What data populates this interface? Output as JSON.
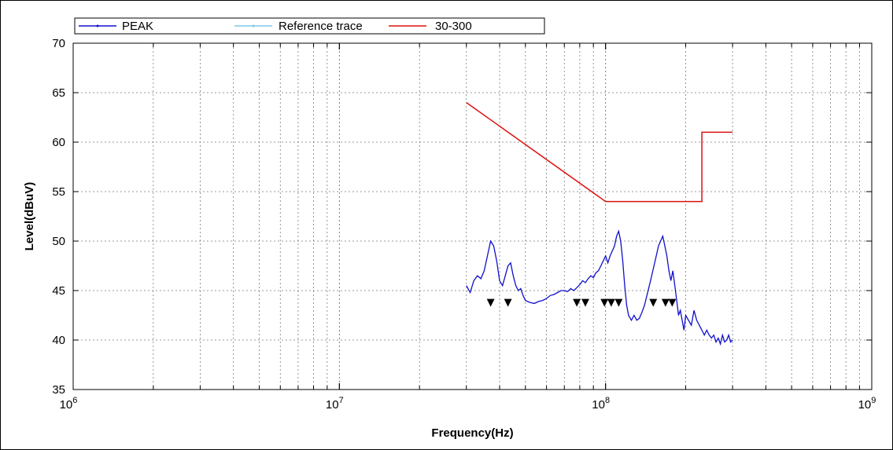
{
  "chart_data": {
    "type": "line",
    "xlabel": "Frequency(Hz)",
    "ylabel": "Level(dBuV)",
    "xscale": "log",
    "xlim": [
      1000000,
      1000000000
    ],
    "ylim": [
      35,
      70
    ],
    "x_ticks": [
      {
        "value": 1000000,
        "base": "10",
        "exp": "6"
      },
      {
        "value": 10000000,
        "base": "10",
        "exp": "7"
      },
      {
        "value": 100000000,
        "base": "10",
        "exp": "8"
      },
      {
        "value": 1000000000,
        "base": "10",
        "exp": "9"
      }
    ],
    "y_ticks": [
      "35",
      "40",
      "45",
      "50",
      "55",
      "60",
      "65",
      "70"
    ],
    "grid": true,
    "legend_position": "top-left",
    "series": [
      {
        "name": "PEAK",
        "color": "#1010cc",
        "points": [
          [
            30000000,
            45.5
          ],
          [
            31000000,
            44.8
          ],
          [
            32000000,
            46.0
          ],
          [
            33000000,
            46.5
          ],
          [
            34000000,
            46.2
          ],
          [
            35000000,
            47.0
          ],
          [
            36000000,
            48.5
          ],
          [
            37000000,
            50.0
          ],
          [
            38000000,
            49.5
          ],
          [
            39000000,
            48.0
          ],
          [
            40000000,
            46.0
          ],
          [
            41000000,
            45.5
          ],
          [
            42000000,
            46.5
          ],
          [
            43000000,
            47.5
          ],
          [
            44000000,
            47.8
          ],
          [
            45000000,
            46.5
          ],
          [
            46000000,
            45.5
          ],
          [
            47000000,
            45.0
          ],
          [
            48000000,
            45.2
          ],
          [
            49000000,
            44.5
          ],
          [
            50000000,
            44.0
          ],
          [
            52000000,
            43.8
          ],
          [
            54000000,
            43.7
          ],
          [
            56000000,
            43.9
          ],
          [
            58000000,
            44.0
          ],
          [
            60000000,
            44.2
          ],
          [
            62000000,
            44.5
          ],
          [
            64000000,
            44.6
          ],
          [
            66000000,
            44.8
          ],
          [
            68000000,
            45.0
          ],
          [
            70000000,
            45.0
          ],
          [
            72000000,
            44.9
          ],
          [
            74000000,
            45.2
          ],
          [
            76000000,
            45.0
          ],
          [
            78000000,
            45.3
          ],
          [
            80000000,
            45.6
          ],
          [
            82000000,
            46.0
          ],
          [
            84000000,
            45.8
          ],
          [
            86000000,
            46.2
          ],
          [
            88000000,
            46.5
          ],
          [
            90000000,
            46.3
          ],
          [
            92000000,
            46.8
          ],
          [
            94000000,
            47.0
          ],
          [
            96000000,
            47.5
          ],
          [
            98000000,
            48.0
          ],
          [
            100000000,
            48.5
          ],
          [
            102000000,
            47.8
          ],
          [
            104000000,
            48.5
          ],
          [
            106000000,
            49.0
          ],
          [
            108000000,
            49.5
          ],
          [
            110000000,
            50.5
          ],
          [
            112000000,
            51.0
          ],
          [
            114000000,
            50.0
          ],
          [
            116000000,
            48.0
          ],
          [
            118000000,
            45.5
          ],
          [
            120000000,
            43.5
          ],
          [
            122000000,
            42.5
          ],
          [
            125000000,
            42.0
          ],
          [
            128000000,
            42.5
          ],
          [
            131000000,
            42.0
          ],
          [
            134000000,
            42.2
          ],
          [
            137000000,
            42.8
          ],
          [
            140000000,
            43.5
          ],
          [
            143000000,
            44.5
          ],
          [
            146000000,
            45.5
          ],
          [
            149000000,
            46.5
          ],
          [
            152000000,
            47.5
          ],
          [
            155000000,
            48.5
          ],
          [
            158000000,
            49.5
          ],
          [
            161000000,
            50.0
          ],
          [
            164000000,
            50.5
          ],
          [
            167000000,
            49.5
          ],
          [
            170000000,
            48.5
          ],
          [
            173000000,
            47.0
          ],
          [
            176000000,
            46.0
          ],
          [
            179000000,
            47.0
          ],
          [
            182000000,
            45.5
          ],
          [
            185000000,
            44.0
          ],
          [
            188000000,
            42.5
          ],
          [
            191000000,
            43.0
          ],
          [
            194000000,
            42.0
          ],
          [
            197000000,
            41.0
          ],
          [
            200000000,
            42.5
          ],
          [
            205000000,
            42.0
          ],
          [
            210000000,
            41.5
          ],
          [
            215000000,
            43.0
          ],
          [
            220000000,
            42.0
          ],
          [
            225000000,
            41.5
          ],
          [
            230000000,
            41.0
          ],
          [
            235000000,
            40.5
          ],
          [
            240000000,
            41.0
          ],
          [
            245000000,
            40.5
          ],
          [
            250000000,
            40.2
          ],
          [
            255000000,
            40.5
          ],
          [
            260000000,
            39.8
          ],
          [
            265000000,
            40.2
          ],
          [
            270000000,
            39.6
          ],
          [
            275000000,
            40.5
          ],
          [
            280000000,
            39.8
          ],
          [
            285000000,
            40.0
          ],
          [
            290000000,
            40.5
          ],
          [
            295000000,
            39.8
          ],
          [
            300000000,
            40.0
          ]
        ]
      },
      {
        "name": "Reference trace",
        "color": "#7fc8e8",
        "points": []
      },
      {
        "name": "30-300",
        "color": "#dd1111",
        "points": [
          [
            30000000,
            64
          ],
          [
            100000000,
            54
          ],
          [
            230000000,
            54
          ],
          [
            230000000,
            61
          ],
          [
            300000000,
            61
          ]
        ]
      }
    ],
    "markers": {
      "symbol": "▼",
      "y": 43.9,
      "x": [
        37000000,
        43000000,
        78000000,
        84000000,
        99000000,
        105000000,
        112000000,
        151000000,
        168000000,
        178000000
      ]
    }
  }
}
